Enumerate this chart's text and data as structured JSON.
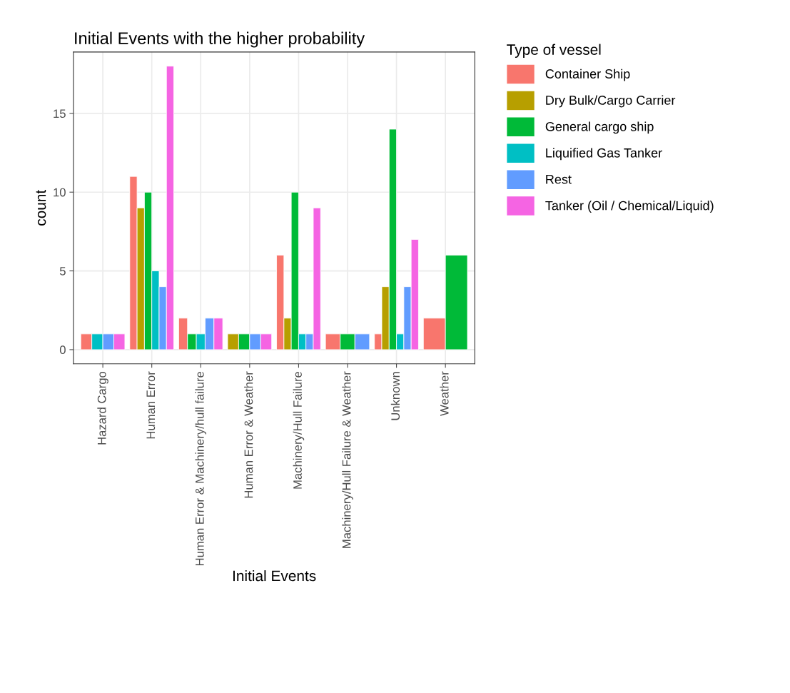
{
  "chart_data": {
    "type": "bar",
    "title": "Initial Events with the higher probability",
    "xlabel": "Initial Events",
    "ylabel": "count",
    "legend_title": "Type of vessel",
    "categories": [
      "Hazard Cargo",
      "Human Error",
      "Human Error & Machinery/hull failure",
      "Human Error & Weather",
      "Machinery/Hull Failure",
      "Machinery/Hull Failure & Weather",
      "Unknown",
      "Weather"
    ],
    "series": [
      {
        "name": "Container Ship",
        "color": "#f8766d",
        "values": [
          1,
          11,
          2,
          null,
          6,
          1,
          1,
          2
        ]
      },
      {
        "name": "Dry Bulk/Cargo Carrier",
        "color": "#b79f00",
        "values": [
          null,
          9,
          null,
          1,
          2,
          null,
          4,
          null
        ]
      },
      {
        "name": "General cargo ship",
        "color": "#00ba38",
        "values": [
          null,
          10,
          1,
          1,
          10,
          1,
          14,
          6
        ]
      },
      {
        "name": "Liquified Gas Tanker",
        "color": "#00bfc4",
        "values": [
          1,
          5,
          1,
          null,
          1,
          null,
          1,
          null
        ]
      },
      {
        "name": "Rest",
        "color": "#619cff",
        "values": [
          1,
          4,
          2,
          1,
          1,
          1,
          4,
          null
        ]
      },
      {
        "name": "Tanker (Oil / Chemical/Liquid)",
        "color": "#f564e3",
        "values": [
          1,
          18,
          2,
          1,
          9,
          null,
          7,
          null
        ]
      }
    ],
    "ylim": [
      -0.9,
      18.9
    ],
    "yticks": [
      0,
      5,
      10,
      15
    ],
    "grid": true,
    "legend": "right"
  }
}
